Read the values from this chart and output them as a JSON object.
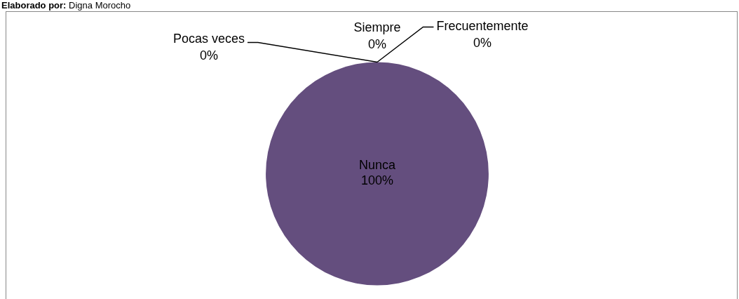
{
  "chart_data": {
    "type": "pie",
    "categories": [
      "Siempre",
      "Frecuentemente",
      "Pocas veces",
      "Nunca"
    ],
    "values": [
      0,
      0,
      0,
      100
    ],
    "colors": [
      "#4f81bd",
      "#c0504d",
      "#9bbb59",
      "#644e7e"
    ],
    "value_labels": [
      "0%",
      "0%",
      "0%",
      "100%"
    ],
    "legend": false,
    "annotations": [
      "Elaborado por: Digna Morocho"
    ]
  }
}
